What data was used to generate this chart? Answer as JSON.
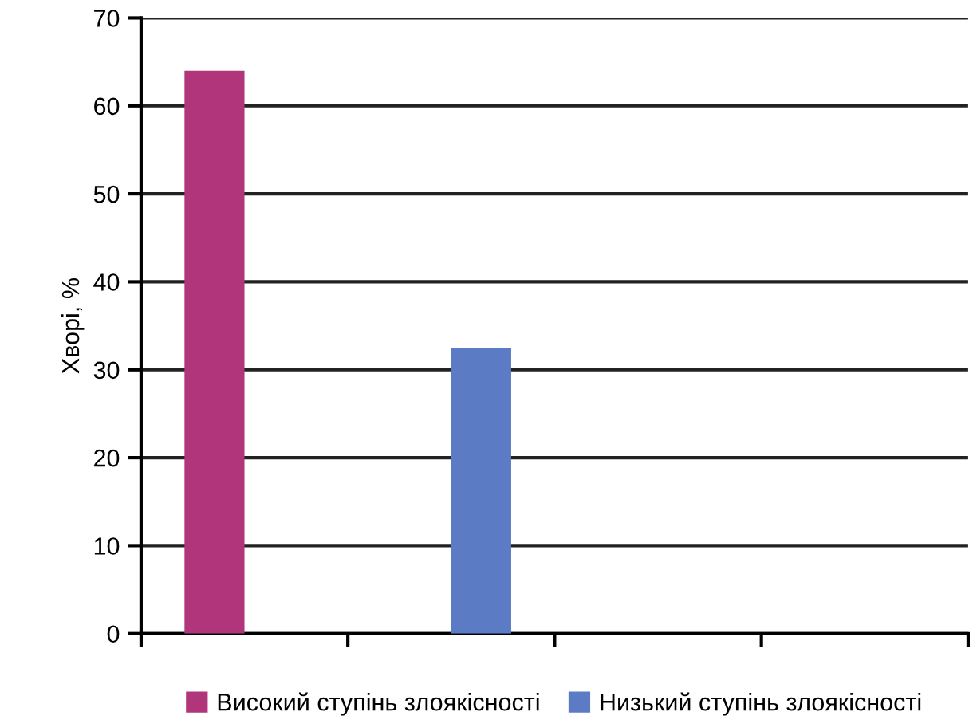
{
  "chart_data": {
    "type": "bar",
    "ylabel": "Хворі, %",
    "categories": [
      null,
      null,
      null,
      null
    ],
    "series": [
      {
        "name": "Високий ступінь злоякісності",
        "color": "#b0357a",
        "values": [
          64,
          null,
          null,
          null
        ]
      },
      {
        "name": "Низький ступінь злоякісності",
        "color": "#5b7cc4",
        "values": [
          null,
          32.5,
          null,
          null
        ]
      }
    ],
    "ylim": [
      0,
      70
    ],
    "yticks": [
      0,
      10,
      20,
      30,
      40,
      50,
      60,
      70
    ],
    "grid": "y",
    "legend": "bottom"
  }
}
